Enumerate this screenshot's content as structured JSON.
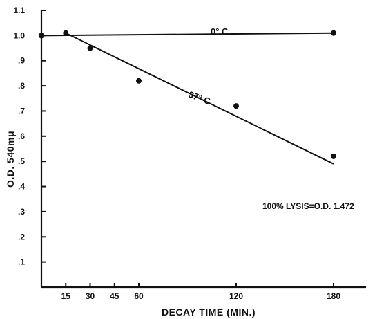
{
  "chart_data": {
    "type": "scatter",
    "title": "",
    "xlabel": "DECAY TIME (MIN.)",
    "ylabel": "O.D. 540mμ",
    "xlim": [
      0,
      200
    ],
    "ylim": [
      0,
      1.1
    ],
    "x_ticks": [
      {
        "value": 15,
        "label": "15"
      },
      {
        "value": 30,
        "label": "30"
      },
      {
        "value": 45,
        "label": "45"
      },
      {
        "value": 60,
        "label": "60"
      },
      {
        "value": 120,
        "label": "120"
      },
      {
        "value": 180,
        "label": "180"
      }
    ],
    "y_ticks": [
      {
        "value": 0.1,
        "label": ".1"
      },
      {
        "value": 0.2,
        "label": ".2"
      },
      {
        "value": 0.3,
        "label": ".3"
      },
      {
        "value": 0.4,
        "label": ".4"
      },
      {
        "value": 0.5,
        "label": ".5"
      },
      {
        "value": 0.6,
        "label": ".6"
      },
      {
        "value": 0.7,
        "label": ".7"
      },
      {
        "value": 0.8,
        "label": ".8"
      },
      {
        "value": 0.9,
        "label": ".9"
      },
      {
        "value": 1.0,
        "label": "1.0"
      },
      {
        "value": 1.1,
        "label": "1.1"
      }
    ],
    "grid": false,
    "series": [
      {
        "name": "0° C",
        "points": [
          {
            "x": 0,
            "y": 1.0
          },
          {
            "x": 15,
            "y": 1.01
          },
          {
            "x": 180,
            "y": 1.01
          }
        ],
        "line": [
          {
            "x": 0,
            "y": 1.0
          },
          {
            "x": 180,
            "y": 1.01
          }
        ]
      },
      {
        "name": "37° C",
        "points": [
          {
            "x": 0,
            "y": 1.0
          },
          {
            "x": 30,
            "y": 0.95
          },
          {
            "x": 60,
            "y": 0.82
          },
          {
            "x": 120,
            "y": 0.72
          },
          {
            "x": 180,
            "y": 0.52
          }
        ],
        "line": [
          {
            "x": 15,
            "y": 1.01
          },
          {
            "x": 180,
            "y": 0.49
          }
        ]
      }
    ],
    "annotation": "100% LYSIS=O.D. 1.472"
  }
}
